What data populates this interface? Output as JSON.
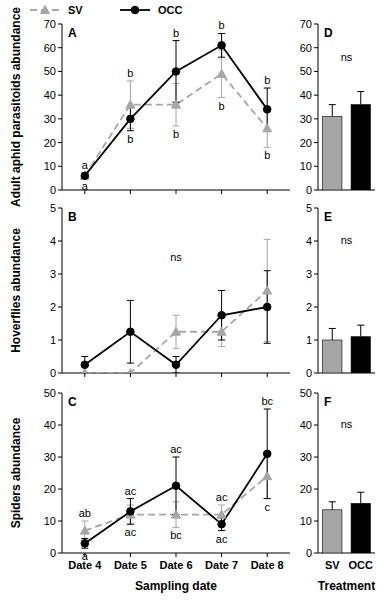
{
  "chart_data": [
    {
      "type": "line",
      "panel_label": "A",
      "y_label": "Adult aphid parasitoids abundance",
      "categories": [
        null,
        null,
        null,
        null,
        null
      ],
      "ylim": [
        0,
        70
      ],
      "yticks": [
        0,
        10,
        20,
        30,
        40,
        50,
        60,
        70
      ],
      "legend": "top",
      "series": [
        {
          "name": "SV",
          "color": "#a6a6a6",
          "marker": "triangle",
          "line_style": "dashed",
          "values": [
            6,
            36,
            36,
            49,
            26
          ],
          "errors": [
            1,
            10,
            9,
            10,
            8
          ],
          "letters": [
            "a",
            "b",
            "b",
            "b",
            "b"
          ]
        },
        {
          "name": "OCC",
          "color": "#000000",
          "marker": "circle",
          "line_style": "solid",
          "values": [
            6,
            30,
            50,
            61,
            34
          ],
          "errors": [
            1,
            5,
            13,
            5,
            9
          ],
          "letters": [
            "a",
            "b",
            "b",
            "b",
            "b"
          ]
        }
      ]
    },
    {
      "type": "line",
      "panel_label": "B",
      "y_label": "Hoverflies abundance",
      "annotation": "ns",
      "categories": [
        null,
        null,
        null,
        null,
        null
      ],
      "ylim": [
        0,
        5
      ],
      "yticks": [
        0,
        1,
        2,
        3,
        4,
        5
      ],
      "series": [
        {
          "name": "SV",
          "color": "#a6a6a6",
          "marker": "triangle",
          "line_style": "dashed",
          "values": [
            0,
            0,
            1.25,
            1.25,
            2.5
          ],
          "errors": [
            0,
            0,
            0.5,
            0.45,
            1.55
          ]
        },
        {
          "name": "OCC",
          "color": "#000000",
          "marker": "circle",
          "line_style": "solid",
          "values": [
            0.25,
            1.25,
            0.25,
            1.75,
            2
          ],
          "errors": [
            0.25,
            0.95,
            0.25,
            0.75,
            1.1
          ]
        }
      ]
    },
    {
      "type": "line",
      "panel_label": "C",
      "y_label": "Spiders abundance",
      "x_label": "Sampling date",
      "categories": [
        "Date 4",
        "Date 5",
        "Date 6",
        "Date 7",
        "Date 8"
      ],
      "ylim": [
        0,
        50
      ],
      "yticks": [
        0,
        10,
        20,
        30,
        40,
        50
      ],
      "series": [
        {
          "name": "SV",
          "color": "#a6a6a6",
          "marker": "triangle",
          "line_style": "dashed",
          "values": [
            7,
            12,
            12,
            12,
            24
          ],
          "errors": [
            3,
            3,
            4,
            3,
            7
          ],
          "letters": [
            "ab",
            "ac",
            "bc",
            "ac",
            "c"
          ]
        },
        {
          "name": "OCC",
          "color": "#000000",
          "marker": "circle",
          "line_style": "solid",
          "values": [
            3,
            13,
            21,
            9,
            31
          ],
          "errors": [
            1.5,
            4,
            9,
            2,
            14
          ],
          "letters": [
            "a",
            "ac",
            "ac",
            "ac",
            "bc"
          ]
        }
      ]
    },
    {
      "type": "bar",
      "panel_label": "D",
      "annotation": "ns",
      "categories": [
        null,
        null
      ],
      "values": [
        31,
        36
      ],
      "errors": [
        5,
        5.5
      ],
      "colors": [
        "#a6a6a6",
        "#000000"
      ],
      "ylim": [
        0,
        70
      ],
      "yticks": [
        0,
        10,
        20,
        30,
        40,
        50,
        60,
        70
      ]
    },
    {
      "type": "bar",
      "panel_label": "E",
      "annotation": "ns",
      "categories": [
        null,
        null
      ],
      "values": [
        1,
        1.1
      ],
      "errors": [
        0.35,
        0.35
      ],
      "colors": [
        "#a6a6a6",
        "#000000"
      ],
      "ylim": [
        0,
        5
      ],
      "yticks": [
        0,
        1,
        2,
        3,
        4,
        5
      ]
    },
    {
      "type": "bar",
      "panel_label": "F",
      "annotation": "ns",
      "x_label": "Treatment",
      "categories": [
        "SV",
        "OCC"
      ],
      "values": [
        13.5,
        15.5
      ],
      "errors": [
        2.5,
        3.5
      ],
      "colors": [
        "#a6a6a6",
        "#000000"
      ],
      "ylim": [
        0,
        50
      ],
      "yticks": [
        0,
        10,
        20,
        30,
        40,
        50
      ]
    }
  ]
}
